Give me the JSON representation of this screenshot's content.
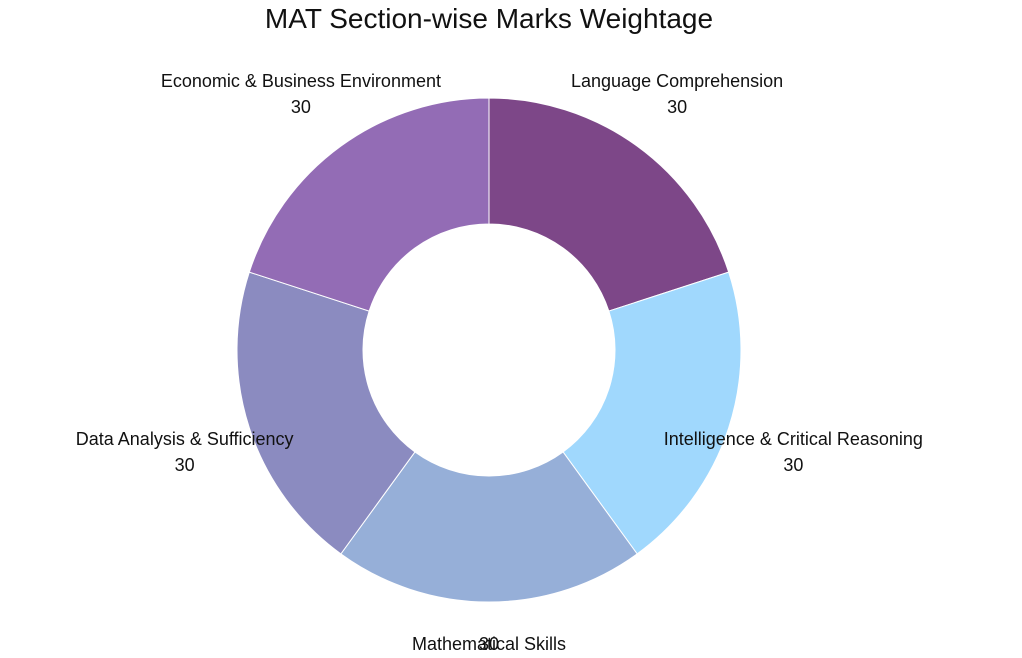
{
  "chart_data": {
    "type": "pie",
    "variant": "donut",
    "title": "MAT Section-wise Marks Weightage",
    "categories": [
      "Language Comprehension",
      "Intelligence & Critical Reasoning",
      "Mathematical Skills",
      "Data Analysis & Sufficiency",
      "Economic & Business Environment"
    ],
    "values": [
      30,
      30,
      30,
      30,
      30
    ],
    "colors": [
      "#7d4788",
      "#a0d8fd",
      "#96afd8",
      "#8b8bc0",
      "#936cb5"
    ],
    "start_angle_deg": 0,
    "direction": "clockwise",
    "legend": "none",
    "labels_outside": true
  }
}
